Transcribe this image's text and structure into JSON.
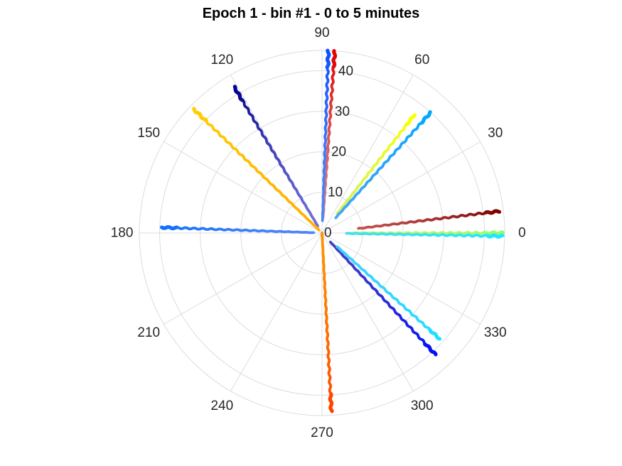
{
  "chart_data": {
    "type": "scatter",
    "coordinate_system": "polar",
    "title": "Epoch 1 - bin #1 - 0 to 5 minutes",
    "theta_ticks": [
      "0",
      "30",
      "60",
      "90",
      "120",
      "150",
      "180",
      "210",
      "240",
      "270",
      "300",
      "330"
    ],
    "theta_tick_values": [
      0,
      30,
      60,
      90,
      120,
      150,
      180,
      210,
      240,
      270,
      300,
      330
    ],
    "r_ticks": [
      "0",
      "10",
      "20",
      "30",
      "40"
    ],
    "r_tick_values": [
      0,
      10,
      20,
      30,
      40
    ],
    "r_tick_label_angle": 85,
    "rlim": [
      0,
      45
    ],
    "grid": true,
    "colormap": "jet",
    "series": [
      {
        "theta": 86,
        "r_start": 4,
        "r_end": 45,
        "color_start": "#d98080",
        "color_end": "#e00000"
      },
      {
        "theta": 88,
        "r_start": 3,
        "r_end": 45,
        "color_start": "#4f86f7",
        "color_end": "#1050ff"
      },
      {
        "theta": 121,
        "r_start": 2,
        "r_end": 42,
        "color_start": "#6e6ed8",
        "color_end": "#000090"
      },
      {
        "theta": 136,
        "r_start": 1,
        "r_end": 44,
        "color_start": "#ffb000",
        "color_end": "#ffd000"
      },
      {
        "theta": 178,
        "r_start": 2,
        "r_end": 39.5,
        "color_start": "#4f86f7",
        "color_end": "#1070ff"
      },
      {
        "theta": 52,
        "r_start": 6,
        "r_end": 37,
        "color_start": "#d4f25a",
        "color_end": "#ffff00"
      },
      {
        "theta": 48,
        "r_start": 5,
        "r_end": 40,
        "color_start": "#42a5f5",
        "color_end": "#00a8ff"
      },
      {
        "theta": 7,
        "r_start": 9,
        "r_end": 44,
        "color_start": "#c05050",
        "color_end": "#800000"
      },
      {
        "theta": 0,
        "r_start": 7,
        "r_end": 44.5,
        "color_start": "#d4f25a",
        "color_end": "#90ff70"
      },
      {
        "theta": -1,
        "r_start": 6,
        "r_end": 44.5,
        "color_start": "#40e0f0",
        "color_end": "#20e8ff"
      },
      {
        "theta": 313,
        "r_start": 3,
        "r_end": 41,
        "color_start": "#4040c0",
        "color_end": "#0010ff"
      },
      {
        "theta": 318,
        "r_start": 5,
        "r_end": 39,
        "color_start": "#40d0ff",
        "color_end": "#20e0ff"
      },
      {
        "theta": 273,
        "r_start": 0,
        "r_end": 44,
        "color_start": "#ff9000",
        "color_end": "#ff4000"
      }
    ]
  }
}
